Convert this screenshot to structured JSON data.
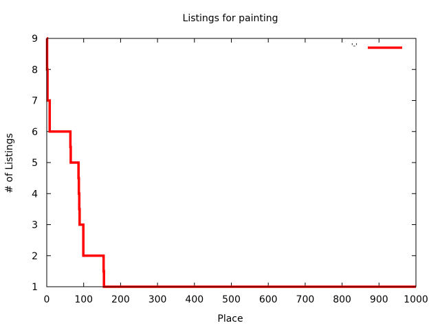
{
  "chart_data": {
    "type": "line",
    "title": "Listings for painting",
    "xlabel": "Place",
    "ylabel": "# of Listings",
    "xlim": [
      0,
      1000
    ],
    "ylim": [
      1,
      9
    ],
    "x_ticks": [
      0,
      100,
      200,
      300,
      400,
      500,
      600,
      700,
      800,
      900,
      1000
    ],
    "y_ticks": [
      1,
      2,
      3,
      4,
      5,
      6,
      7,
      8,
      9
    ],
    "grid": false,
    "legend": {
      "placement": "top-right",
      "entries": [
        {
          "label": "'-'",
          "color": "#ff0000"
        }
      ]
    },
    "series": [
      {
        "color": "#ff0000",
        "step": true,
        "x": [
          0,
          1,
          2,
          3,
          8,
          63,
          64,
          65,
          85,
          86,
          87,
          88,
          89,
          90,
          91,
          98,
          99,
          153,
          154,
          155,
          1000
        ],
        "y": [
          9,
          8,
          7,
          7,
          6,
          6,
          5.5,
          5,
          5,
          4.5,
          4,
          3.5,
          3,
          3,
          3,
          3,
          2,
          2,
          1.5,
          1,
          1
        ]
      }
    ]
  }
}
